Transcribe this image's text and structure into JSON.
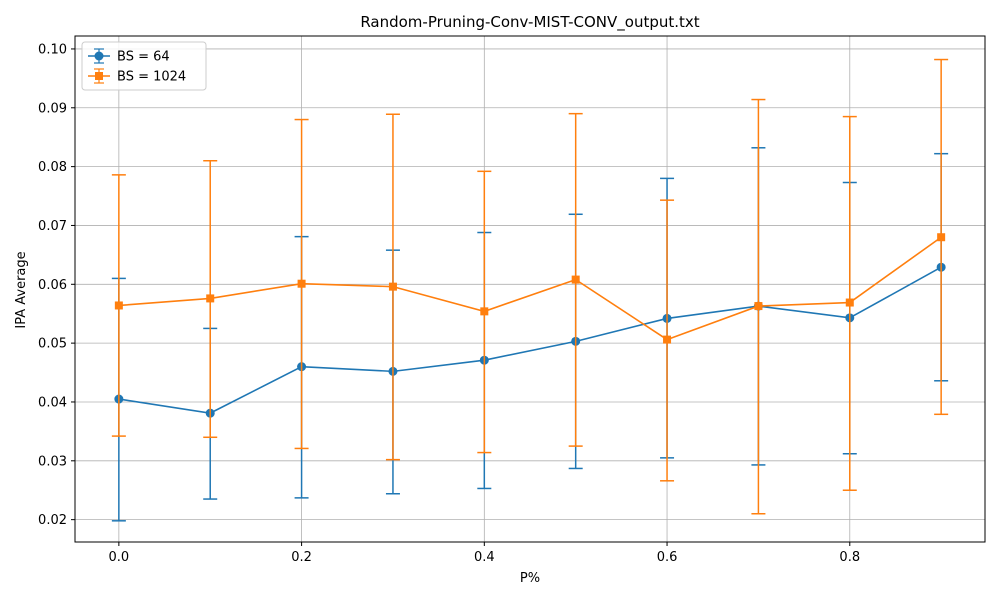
{
  "chart_data": {
    "type": "line",
    "title": "Random-Pruning-Conv-MIST-CONV_output.txt",
    "xlabel": "P%",
    "ylabel": "IPA Average",
    "x": [
      0.0,
      0.1,
      0.2,
      0.3,
      0.4,
      0.5,
      0.6,
      0.7,
      0.8,
      0.9
    ],
    "xlim": [
      -0.048,
      0.948
    ],
    "ylim": [
      0.0162,
      0.1022
    ],
    "xticks": [
      0.0,
      0.2,
      0.4,
      0.6,
      0.8
    ],
    "xtick_labels": [
      "0.0",
      "0.2",
      "0.4",
      "0.6",
      "0.8"
    ],
    "yticks": [
      0.02,
      0.03,
      0.04,
      0.05,
      0.06,
      0.07,
      0.08,
      0.09,
      0.1
    ],
    "ytick_labels": [
      "0.02",
      "0.03",
      "0.04",
      "0.05",
      "0.06",
      "0.07",
      "0.08",
      "0.09",
      "0.10"
    ],
    "grid": true,
    "legend_position": "top-left",
    "series": [
      {
        "name": "BS = 64",
        "color": "#1f77b4",
        "marker": "circle",
        "values": [
          0.0405,
          0.0381,
          0.046,
          0.0452,
          0.0471,
          0.0503,
          0.0542,
          0.0563,
          0.0543,
          0.0629
        ],
        "err_low": [
          0.0198,
          0.0235,
          0.0237,
          0.0244,
          0.0253,
          0.0287,
          0.0305,
          0.0293,
          0.0312,
          0.0436
        ],
        "err_high": [
          0.061,
          0.0525,
          0.0681,
          0.0658,
          0.0688,
          0.0719,
          0.078,
          0.0832,
          0.0773,
          0.0822
        ]
      },
      {
        "name": "BS = 1024",
        "color": "#ff7f0e",
        "marker": "square",
        "values": [
          0.0564,
          0.0576,
          0.0601,
          0.0596,
          0.0554,
          0.0608,
          0.0506,
          0.0563,
          0.0569,
          0.068
        ],
        "err_low": [
          0.0342,
          0.034,
          0.0321,
          0.0302,
          0.0314,
          0.0325,
          0.0266,
          0.021,
          0.025,
          0.0379
        ],
        "err_high": [
          0.0786,
          0.081,
          0.088,
          0.0889,
          0.0792,
          0.089,
          0.0743,
          0.0914,
          0.0885,
          0.0982
        ]
      }
    ]
  }
}
